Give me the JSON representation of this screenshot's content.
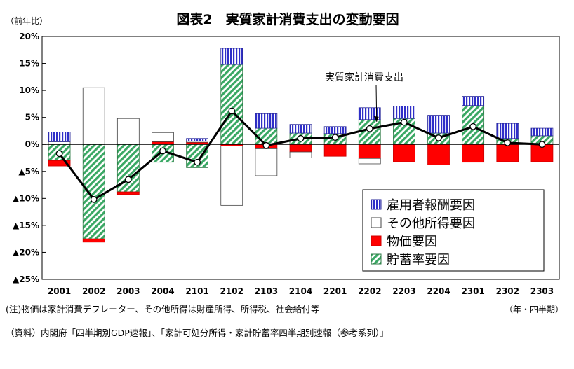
{
  "chart_data": {
    "type": "bar",
    "subtype": "stacked-bar-with-line",
    "title": "図表2　実質家計消費支出の変動要因",
    "ylabel": "（前年比）",
    "xlabel": "（年・四半期）",
    "ylim": [
      -25,
      20
    ],
    "y_ticks": [
      20,
      15,
      10,
      5,
      0,
      -5,
      -10,
      -15,
      -20,
      -25
    ],
    "y_tick_labels": [
      "20%",
      "15%",
      "10%",
      "5%",
      "0%",
      "▲5%",
      "▲10%",
      "▲15%",
      "▲20%",
      "▲25%"
    ],
    "categories": [
      "2001",
      "2002",
      "2003",
      "2004",
      "2101",
      "2102",
      "2103",
      "2104",
      "2201",
      "2202",
      "2203",
      "2204",
      "2301",
      "2302",
      "2303"
    ],
    "series": [
      {
        "name": "雇用者報酬要因",
        "color": "#3b3bd6",
        "pattern": "vertical-stripes",
        "values": [
          1.8,
          0.0,
          0.0,
          0.0,
          0.5,
          3.0,
          2.7,
          1.6,
          1.3,
          2.2,
          2.3,
          3.3,
          1.7,
          2.8,
          1.4
        ]
      },
      {
        "name": "その他所得要因",
        "color": "#ffffff",
        "pattern": "solid",
        "values": [
          0.5,
          10.5,
          4.8,
          1.7,
          0.2,
          -11.0,
          -5.0,
          -1.1,
          0.0,
          -1.0,
          0.0,
          0.0,
          0.0,
          0.0,
          0.0
        ]
      },
      {
        "name": "物価要因",
        "color": "#ff0000",
        "pattern": "solid",
        "values": [
          -1.0,
          -0.6,
          -0.5,
          0.5,
          0.4,
          -0.3,
          -0.8,
          -1.4,
          -2.2,
          -2.6,
          -3.2,
          -3.8,
          -3.3,
          -3.2,
          -3.2
        ]
      },
      {
        "name": "貯蓄率要因",
        "color": "#4caf6e",
        "pattern": "diagonal-stripes",
        "values": [
          -3.0,
          -17.5,
          -8.8,
          -3.3,
          -4.3,
          14.8,
          3.0,
          2.1,
          2.0,
          4.6,
          4.8,
          2.1,
          7.2,
          1.1,
          1.6
        ]
      }
    ],
    "line": {
      "name": "実質家計消費支出",
      "values": [
        -1.7,
        -10.2,
        -6.5,
        -1.2,
        -3.3,
        6.2,
        -0.2,
        1.1,
        1.3,
        2.9,
        4.1,
        1.2,
        3.3,
        0.3,
        0.0
      ]
    },
    "legend_position": "bottom-right",
    "grid": false
  },
  "notes": {
    "note1": "(注)物価は家計消費デフレーター、その他所得は財産所得、所得税、社会給付等",
    "note2": "（資料）内閣府「四半期別GDP速報」、「家計可処分所得・家計貯蓄率四半期別速報（参考系列）」"
  }
}
